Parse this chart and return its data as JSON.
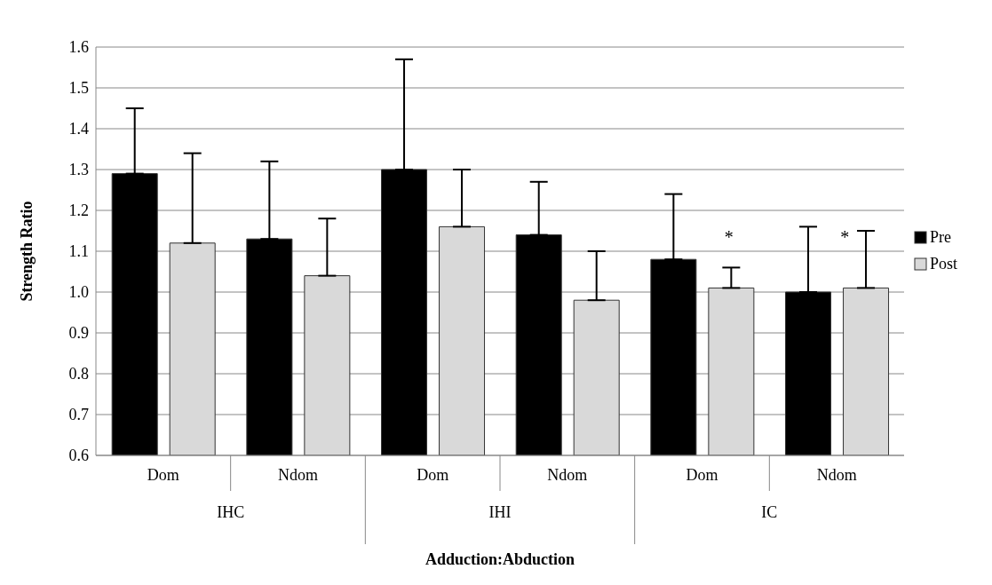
{
  "chart_data": {
    "type": "bar",
    "xlabel": "Adduction:Abduction",
    "ylabel": "Strength Ratio",
    "categories": [
      "Dom",
      "Ndom",
      "Dom",
      "Ndom",
      "Dom",
      "Ndom"
    ],
    "series": [
      {
        "name": "Pre",
        "color": "#000000",
        "values": [
          1.29,
          1.13,
          1.3,
          1.14,
          1.08,
          1.0
        ],
        "errors": [
          [
            1.29,
            1.45
          ],
          [
            1.13,
            1.32
          ],
          [
            1.3,
            1.57
          ],
          [
            1.14,
            1.27
          ],
          [
            1.08,
            1.24
          ],
          [
            1.0,
            1.16
          ]
        ]
      },
      {
        "name": "Post",
        "color": "#d9d9d9",
        "values": [
          1.12,
          1.04,
          1.16,
          0.98,
          1.01,
          1.01
        ],
        "errors": [
          [
            1.12,
            1.34
          ],
          [
            1.04,
            1.18
          ],
          [
            1.16,
            1.3
          ],
          [
            0.98,
            1.1
          ],
          [
            1.01,
            1.06
          ],
          [
            1.01,
            1.15
          ]
        ]
      }
    ],
    "annotations": [
      "IHC",
      "IHI",
      "IC",
      "*",
      "*"
    ],
    "ylim": [
      0.6,
      1.6
    ],
    "yticks": [
      0.6,
      0.7,
      0.8,
      0.9,
      {
        "value": 1,
        "label": "1.0"
      },
      1.1,
      1.2,
      1.3,
      1.4,
      1.5,
      1.6
    ],
    "grid": "y",
    "legend": "right"
  }
}
